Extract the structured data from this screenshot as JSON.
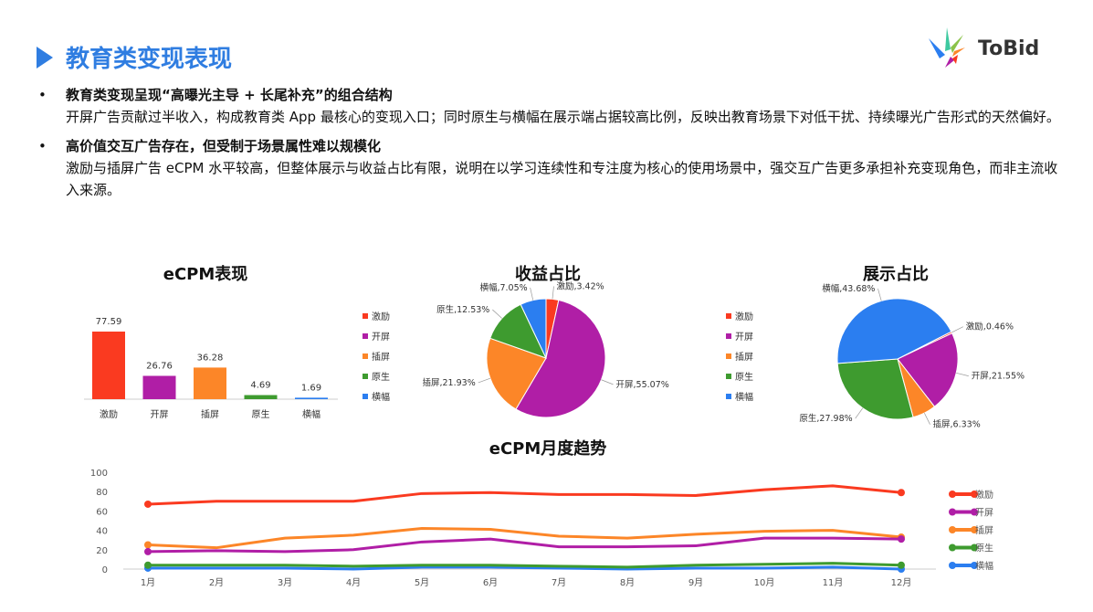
{
  "header": {
    "title": "教育类变现表现",
    "logo": "ToBid"
  },
  "bullets": [
    {
      "heading": "教育类变现呈现“高曝光主导 + 长尾补充”的组合结构",
      "body": "开屏广告贡献过半收入，构成教育类 App 最核心的变现入口；同时原生与横幅在展示端占据较高比例，反映出教育场景下对低干扰、持续曝光广告形式的天然偏好。"
    },
    {
      "heading": "高价值交互广告存在，但受制于场景属性难以规模化",
      "body": "激励与插屏广告 eCPM 水平较高，但整体展示与收益占比有限，说明在以学习连续性和专注度为核心的使用场景中，强交互广告更多承担补充变现角色，而非主流收入来源。"
    }
  ],
  "colors": {
    "激励": "#fa3a20",
    "开屏": "#b01ea6",
    "插屏": "#fc8628",
    "原生": "#3e9b2f",
    "横幅": "#2b7ef0",
    "accent": "#2f7de1"
  },
  "chart_data": [
    {
      "type": "bar",
      "title": "eCPM表现",
      "categories": [
        "激励",
        "开屏",
        "插屏",
        "原生",
        "横幅"
      ],
      "values": [
        77.59,
        26.76,
        36.28,
        4.69,
        1.69
      ],
      "data_labels": [
        "77.59",
        "26.76",
        "36.28",
        "4.69",
        "1.69"
      ]
    },
    {
      "type": "pie",
      "title": "收益占比",
      "categories": [
        "激励",
        "开屏",
        "插屏",
        "原生",
        "横幅"
      ],
      "values": [
        3.42,
        55.07,
        21.93,
        12.53,
        7.05
      ],
      "data_labels": [
        "激励,3.42%",
        "开屏,55.07%",
        "插屏,21.93%",
        "原生,12.53%",
        "横幅,7.05%"
      ],
      "legend": "left"
    },
    {
      "type": "pie",
      "title": "展示占比",
      "categories": [
        "激励",
        "开屏",
        "插屏",
        "原生",
        "横幅"
      ],
      "values": [
        0.46,
        21.55,
        6.33,
        27.98,
        43.68
      ],
      "data_labels": [
        "激励,0.46%",
        "开屏,21.55%",
        "插屏,6.33%",
        "原生,27.98%",
        "横幅,43.68%"
      ],
      "legend": "left"
    },
    {
      "type": "line",
      "title": "eCPM月度趋势",
      "x": [
        "1月",
        "2月",
        "3月",
        "4月",
        "5月",
        "6月",
        "7月",
        "8月",
        "9月",
        "10月",
        "11月",
        "12月"
      ],
      "ylim": [
        0,
        100
      ],
      "yticks": [
        "0",
        "20",
        "40",
        "60",
        "80",
        "100"
      ],
      "legend": "right",
      "series": [
        {
          "name": "激励",
          "values": [
            67,
            70,
            70,
            70,
            78,
            79,
            77,
            77,
            76,
            82,
            86,
            79
          ]
        },
        {
          "name": "开屏",
          "values": [
            18,
            19,
            18,
            20,
            28,
            31,
            23,
            23,
            24,
            32,
            32,
            31
          ]
        },
        {
          "name": "插屏",
          "values": [
            25,
            22,
            32,
            35,
            42,
            41,
            34,
            32,
            36,
            39,
            40,
            33
          ]
        },
        {
          "name": "原生",
          "values": [
            4,
            4,
            4,
            3,
            4,
            4,
            3,
            2,
            4,
            5,
            6,
            4
          ]
        },
        {
          "name": "横幅",
          "values": [
            1,
            1,
            1,
            0,
            2,
            2,
            1,
            0,
            1,
            1,
            2,
            0
          ]
        }
      ]
    }
  ]
}
